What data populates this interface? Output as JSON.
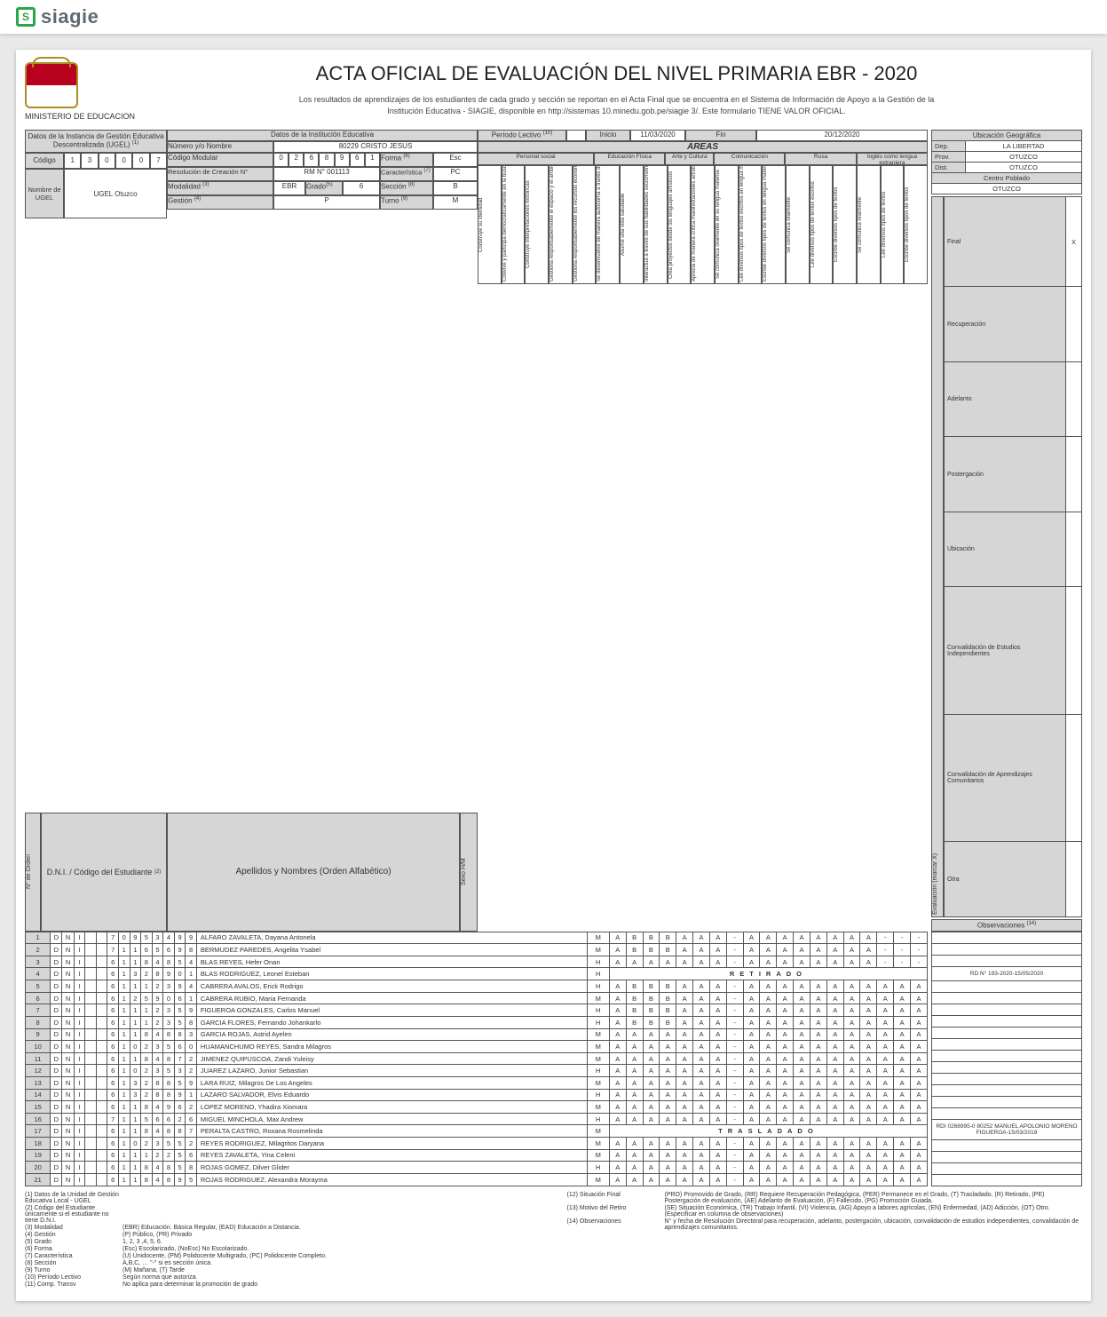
{
  "brand": {
    "name": "siagie"
  },
  "header": {
    "ministry": "MINISTERIO DE EDUCACION",
    "title": "ACTA OFICIAL DE EVALUACIÓN DEL NIVEL PRIMARIA EBR - 2020",
    "subtitle": "Los resultados de aprendizajes de los estudiantes de cada grado y sección se reportan en el Acta Final que se encuentra en el Sistema de Información de Apoyo a la Gestión de la Institución Educativa - SIAGIE, disponible en  http://sistemas        10.minedu.gob.pe/siagie  3/. Este formulario TIENE VALOR OFICIAL."
  },
  "ugel_block": {
    "title": "Datos de la Instancia de Gestión Educativa Descentralizada (UGEL)",
    "sup": "(1)",
    "codigo_label": "Código",
    "codigo": [
      "1",
      "3",
      "0",
      "0",
      "0",
      "7"
    ],
    "nombre_label": "Nombre de UGEL",
    "nombre": "UGEL Otuzco"
  },
  "ie_block": {
    "title": "Datos de la Institución Educativa",
    "numero_label": "Número y/o Nombre",
    "numero_value": "80229 CRISTO JESUS",
    "cod_mod_label": "Código Modular",
    "cod_mod": [
      "0",
      "2",
      "6",
      "8",
      "9",
      "6",
      "1"
    ],
    "forma_label": "Forma",
    "forma_sup": "(6)",
    "forma_value": "Esc",
    "resol_label": "Resolución de Creación N°",
    "resol_value": "RM N° 001113",
    "caract_label": "Característica",
    "caract_sup": "(7)",
    "caract_value": "PC",
    "modalidad_label": "Modalidad",
    "modalidad_sup": "(3)",
    "modalidad_value": "EBR",
    "grado_label": "Grado",
    "grado_sup": "(5)",
    "grado_value": "6",
    "seccion_label": "Sección",
    "seccion_sup": "(8)",
    "seccion_value": "B",
    "gestion_label": "Gestión",
    "gestion_sup": "(4)",
    "gestion_value": "P",
    "turno_label": "Turno",
    "turno_sup": "(9)",
    "turno_value": "M"
  },
  "periodo": {
    "label": "Período Lectivo",
    "sup": "(10)",
    "inicio_label": "Inicio",
    "inicio": "11/03/2020",
    "fin_label": "Fin",
    "fin": "20/12/2020"
  },
  "areas_label": "ÁREAS",
  "area_groups": [
    "Personal social",
    "Educación Física",
    "Arte y Cultura",
    "Comunicación",
    "Rusa",
    "Inglés como lengua extranjera"
  ],
  "competencias": [
    "Construye su identidad",
    "Convive y participa democráticamente en la búsqueda del bien común",
    "Construye interpretaciones históricas",
    "Gestiona responsablemente el espacio y el ambiente",
    "Gestiona responsablemente los recursos económicos",
    "Se desenvuelve de manera autónoma a través de su motricidad",
    "Asume una vida saludable",
    "Interactúa a través de sus habilidades sociomotrices",
    "Crea proyectos desde los lenguajes artísticos",
    "Aprecia de manera crítica manifestaciones artístico-culturales",
    "Se comunica oralmente en su lengua materna",
    "Lee diversos tipos de textos escritos en lengua materna",
    "Escribe diversos tipos de textos en lengua materna",
    "Se comunica oralmente",
    "Lee diversos tipos de textos escritos",
    "Escribe diversos tipos de textos",
    "Se comunica oralmente",
    "Lee diversos tipos de textos",
    "Escribe diversos tipos de textos"
  ],
  "geo": {
    "title": "Ubicación Geográfica",
    "dep_label": "Dep.",
    "dep": "LA LIBERTAD",
    "prov_label": "Prov.",
    "prov": "OTUZCO",
    "dist_label": "Dist.",
    "dist": "OTUZCO",
    "centro_label": "Centro Poblado",
    "centro": "OTUZCO"
  },
  "eval_block": {
    "side_label": "Evaluación (marcar X)",
    "rows": [
      {
        "label": "Final",
        "val": "X"
      },
      {
        "label": "Recuperación",
        "val": ""
      },
      {
        "label": "Adelanto",
        "val": ""
      },
      {
        "label": "Postergación",
        "val": ""
      },
      {
        "label": "Ubicación",
        "val": ""
      },
      {
        "label": "Convalidación de Estudios Independientes",
        "val": ""
      },
      {
        "label": "Convalidación de Aprendizajes Comunitarios",
        "val": ""
      },
      {
        "label": "Otra",
        "val": ""
      }
    ],
    "obs_label": "Observaciones",
    "obs_sup": "(14)"
  },
  "columns": {
    "orden": "N° de Orden",
    "dni": "D.N.I. / Código del Estudiante",
    "dni_sup": "(2)",
    "nombres": "Apellidos y Nombres (Orden Alfabético)",
    "sexo": "Sexo H/M"
  },
  "students": [
    {
      "n": 1,
      "dni": [
        "D",
        "N",
        "I",
        "",
        "",
        "7",
        "0",
        "9",
        "5",
        "3",
        "4",
        "9",
        "9"
      ],
      "name": "ALFARO ZAVALETA, Dayana Antonela",
      "sex": "M",
      "g": [
        "A",
        "B",
        "B",
        "B",
        "A",
        "A",
        "A",
        "-",
        "A",
        "A",
        "A",
        "A",
        "A",
        "A",
        "A",
        "A",
        "-",
        "-",
        "-"
      ]
    },
    {
      "n": 2,
      "dni": [
        "D",
        "N",
        "I",
        "",
        "",
        "7",
        "1",
        "1",
        "6",
        "5",
        "6",
        "9",
        "8"
      ],
      "name": "BERMUDEZ PAREDES, Angelita Ysabel",
      "sex": "M",
      "g": [
        "A",
        "B",
        "B",
        "B",
        "A",
        "A",
        "A",
        "-",
        "A",
        "A",
        "A",
        "A",
        "A",
        "A",
        "A",
        "A",
        "-",
        "-",
        "-"
      ]
    },
    {
      "n": 3,
      "dni": [
        "D",
        "N",
        "I",
        "",
        "",
        "6",
        "1",
        "1",
        "8",
        "4",
        "8",
        "5",
        "4"
      ],
      "name": "BLAS REYES, Hefer Onan",
      "sex": "H",
      "g": [
        "A",
        "A",
        "A",
        "A",
        "A",
        "A",
        "A",
        "-",
        "A",
        "A",
        "A",
        "A",
        "A",
        "A",
        "A",
        "A",
        "-",
        "-",
        "-"
      ]
    },
    {
      "n": 4,
      "dni": [
        "D",
        "N",
        "I",
        "",
        "",
        "6",
        "1",
        "3",
        "2",
        "8",
        "9",
        "0",
        "1"
      ],
      "name": "BLAS RODRIGUEZ, Leonel Esteban",
      "sex": "H",
      "status": "RETIRADO",
      "obs": "RD N° 193-2020-15/05/2020"
    },
    {
      "n": 5,
      "dni": [
        "D",
        "N",
        "I",
        "",
        "",
        "6",
        "1",
        "1",
        "1",
        "2",
        "3",
        "9",
        "4"
      ],
      "name": "CABRERA AVALOS, Erick Rodrigo",
      "sex": "H",
      "g": [
        "A",
        "B",
        "B",
        "B",
        "A",
        "A",
        "A",
        "-",
        "A",
        "A",
        "A",
        "A",
        "A",
        "A",
        "A",
        "A",
        "A",
        "A",
        "A"
      ]
    },
    {
      "n": 6,
      "dni": [
        "D",
        "N",
        "I",
        "",
        "",
        "6",
        "1",
        "2",
        "5",
        "9",
        "0",
        "6",
        "1"
      ],
      "name": "CABRERA RUBIO, Maria Fernanda",
      "sex": "M",
      "g": [
        "A",
        "B",
        "B",
        "B",
        "A",
        "A",
        "A",
        "-",
        "A",
        "A",
        "A",
        "A",
        "A",
        "A",
        "A",
        "A",
        "A",
        "A",
        "A"
      ]
    },
    {
      "n": 7,
      "dni": [
        "D",
        "N",
        "I",
        "",
        "",
        "6",
        "1",
        "1",
        "1",
        "2",
        "3",
        "5",
        "9"
      ],
      "name": "FIGUEROA GONZALES, Carlos Manuel",
      "sex": "H",
      "g": [
        "A",
        "B",
        "B",
        "B",
        "A",
        "A",
        "A",
        "-",
        "A",
        "A",
        "A",
        "A",
        "A",
        "A",
        "A",
        "A",
        "A",
        "A",
        "A"
      ]
    },
    {
      "n": 8,
      "dni": [
        "D",
        "N",
        "I",
        "",
        "",
        "6",
        "1",
        "1",
        "1",
        "2",
        "3",
        "5",
        "8"
      ],
      "name": "GARCIA FLORES, Fernando Johankarlo",
      "sex": "H",
      "g": [
        "A",
        "B",
        "B",
        "B",
        "A",
        "A",
        "A",
        "-",
        "A",
        "A",
        "A",
        "A",
        "A",
        "A",
        "A",
        "A",
        "A",
        "A",
        "A"
      ]
    },
    {
      "n": 9,
      "dni": [
        "D",
        "N",
        "I",
        "",
        "",
        "6",
        "1",
        "1",
        "8",
        "4",
        "8",
        "8",
        "3"
      ],
      "name": "GARCIA ROJAS, Astrid Ayelen",
      "sex": "M",
      "g": [
        "A",
        "A",
        "A",
        "A",
        "A",
        "A",
        "A",
        "-",
        "A",
        "A",
        "A",
        "A",
        "A",
        "A",
        "A",
        "A",
        "A",
        "A",
        "A"
      ]
    },
    {
      "n": 10,
      "dni": [
        "D",
        "N",
        "I",
        "",
        "",
        "6",
        "1",
        "0",
        "2",
        "3",
        "5",
        "6",
        "0"
      ],
      "name": "HUAMANCHUMO REYES, Sandra Milagros",
      "sex": "M",
      "g": [
        "A",
        "A",
        "A",
        "A",
        "A",
        "A",
        "A",
        "-",
        "A",
        "A",
        "A",
        "A",
        "A",
        "A",
        "A",
        "A",
        "A",
        "A",
        "A"
      ]
    },
    {
      "n": 11,
      "dni": [
        "D",
        "N",
        "I",
        "",
        "",
        "6",
        "1",
        "1",
        "8",
        "4",
        "8",
        "7",
        "2"
      ],
      "name": "JIMENEZ QUIPUSCOA, Zandi Yuleisy",
      "sex": "M",
      "g": [
        "A",
        "A",
        "A",
        "A",
        "A",
        "A",
        "A",
        "-",
        "A",
        "A",
        "A",
        "A",
        "A",
        "A",
        "A",
        "A",
        "A",
        "A",
        "A"
      ]
    },
    {
      "n": 12,
      "dni": [
        "D",
        "N",
        "I",
        "",
        "",
        "6",
        "1",
        "0",
        "2",
        "3",
        "5",
        "3",
        "2"
      ],
      "name": "JUAREZ LAZARO, Junior Sebastian",
      "sex": "H",
      "g": [
        "A",
        "A",
        "A",
        "A",
        "A",
        "A",
        "A",
        "-",
        "A",
        "A",
        "A",
        "A",
        "A",
        "A",
        "A",
        "A",
        "A",
        "A",
        "A"
      ]
    },
    {
      "n": 13,
      "dni": [
        "D",
        "N",
        "I",
        "",
        "",
        "6",
        "1",
        "3",
        "2",
        "8",
        "8",
        "5",
        "9"
      ],
      "name": "LARA RUIZ, Milagros De Los Angeles",
      "sex": "M",
      "g": [
        "A",
        "A",
        "A",
        "A",
        "A",
        "A",
        "A",
        "-",
        "A",
        "A",
        "A",
        "A",
        "A",
        "A",
        "A",
        "A",
        "A",
        "A",
        "A"
      ]
    },
    {
      "n": 14,
      "dni": [
        "D",
        "N",
        "I",
        "",
        "",
        "6",
        "1",
        "3",
        "2",
        "8",
        "8",
        "9",
        "1"
      ],
      "name": "LAZARO SALVADOR, Elvis Eduardo",
      "sex": "H",
      "g": [
        "A",
        "A",
        "A",
        "A",
        "A",
        "A",
        "A",
        "-",
        "A",
        "A",
        "A",
        "A",
        "A",
        "A",
        "A",
        "A",
        "A",
        "A",
        "A"
      ]
    },
    {
      "n": 15,
      "dni": [
        "D",
        "N",
        "I",
        "",
        "",
        "6",
        "1",
        "1",
        "8",
        "4",
        "9",
        "6",
        "2"
      ],
      "name": "LOPEZ MORENO, Yhadira Xiomara",
      "sex": "M",
      "g": [
        "A",
        "A",
        "A",
        "A",
        "A",
        "A",
        "A",
        "-",
        "A",
        "A",
        "A",
        "A",
        "A",
        "A",
        "A",
        "A",
        "A",
        "A",
        "A"
      ]
    },
    {
      "n": 16,
      "dni": [
        "D",
        "N",
        "I",
        "",
        "",
        "7",
        "1",
        "1",
        "5",
        "6",
        "6",
        "2",
        "6"
      ],
      "name": "MIGUEL MINCHOLA, Max Andrew",
      "sex": "H",
      "g": [
        "A",
        "A",
        "A",
        "A",
        "A",
        "A",
        "A",
        "-",
        "A",
        "A",
        "A",
        "A",
        "A",
        "A",
        "A",
        "A",
        "A",
        "A",
        "A"
      ]
    },
    {
      "n": 17,
      "dni": [
        "D",
        "N",
        "I",
        "",
        "",
        "6",
        "1",
        "1",
        "8",
        "4",
        "8",
        "8",
        "7"
      ],
      "name": "PERALTA CASTRO, Roxana Rosmelinda",
      "sex": "M",
      "status": "TRASLADADO",
      "obs": "RDI 0268995-0 80252 MANUEL APOLONIO MORENO FIGUEROA-15/03/2019"
    },
    {
      "n": 18,
      "dni": [
        "D",
        "N",
        "I",
        "",
        "",
        "6",
        "1",
        "0",
        "2",
        "3",
        "5",
        "5",
        "2"
      ],
      "name": "REYES RODRIGUEZ, Milagritos Daryana",
      "sex": "M",
      "g": [
        "A",
        "A",
        "A",
        "A",
        "A",
        "A",
        "A",
        "-",
        "A",
        "A",
        "A",
        "A",
        "A",
        "A",
        "A",
        "A",
        "A",
        "A",
        "A"
      ]
    },
    {
      "n": 19,
      "dni": [
        "D",
        "N",
        "I",
        "",
        "",
        "6",
        "1",
        "1",
        "1",
        "2",
        "2",
        "5",
        "6"
      ],
      "name": "REYES ZAVALETA, Yina Celeni",
      "sex": "M",
      "g": [
        "A",
        "A",
        "A",
        "A",
        "A",
        "A",
        "A",
        "-",
        "A",
        "A",
        "A",
        "A",
        "A",
        "A",
        "A",
        "A",
        "A",
        "A",
        "A"
      ]
    },
    {
      "n": 20,
      "dni": [
        "D",
        "N",
        "I",
        "",
        "",
        "6",
        "1",
        "1",
        "8",
        "4",
        "8",
        "5",
        "8"
      ],
      "name": "ROJAS GOMEZ, Dilver Glider",
      "sex": "H",
      "g": [
        "A",
        "A",
        "A",
        "A",
        "A",
        "A",
        "A",
        "-",
        "A",
        "A",
        "A",
        "A",
        "A",
        "A",
        "A",
        "A",
        "A",
        "A",
        "A"
      ]
    },
    {
      "n": 21,
      "dni": [
        "D",
        "N",
        "I",
        "",
        "",
        "6",
        "1",
        "1",
        "8",
        "4",
        "8",
        "9",
        "5"
      ],
      "name": "ROJAS RODRIGUEZ, Alexandra Morayma",
      "sex": "M",
      "g": [
        "A",
        "A",
        "A",
        "A",
        "A",
        "A",
        "A",
        "-",
        "A",
        "A",
        "A",
        "A",
        "A",
        "A",
        "A",
        "A",
        "A",
        "A",
        "A"
      ]
    }
  ],
  "footnotes": {
    "left": [
      {
        "k": "(1) Datos de la Unidad de Gestión Educativa Local - UGEL",
        "v": ""
      },
      {
        "k": "(2) Código del Estudiante únicamente si el estudiante no tiene D.N.I.",
        "v": ""
      },
      {
        "k": "(3) Modalidad",
        "v": "(EBR) Educación. Básica Regular, (EAD) Educación a Distancia."
      },
      {
        "k": "(4) Gestión",
        "v": "(P) Público, (PR) Privado"
      },
      {
        "k": "(5) Grado",
        "v": "1, 2, 3 ,4, 5, 6."
      },
      {
        "k": "(6) Forma",
        "v": "(Esc) Escolarizado, (NoEsc) No Escolarizado."
      },
      {
        "k": "(7) Característica",
        "v": "(U) Unidocente, (PM) Polidocente Multigrado, (PC) Polidocente Completo."
      },
      {
        "k": "(8) Sección",
        "v": "A,B,C, …  \"-\" si es sección única."
      },
      {
        "k": "(9) Turno",
        "v": "(M) Mañana, (T) Tarde"
      },
      {
        "k": "(10) Período Lectivo",
        "v": "Según norma que autoriza."
      },
      {
        "k": "(11) Comp. Transv",
        "v": "No aplica para determinar la promoción de grado"
      }
    ],
    "right": [
      {
        "k": "(12) Situación Final",
        "v": "(PRO) Promovido de Grado, (RR) Requiere Recuperación Pedagógica, (PER) Permanece en el Grado, (T) Trasladado, (R) Retirado, (PE) Postergación de evaluación, (AE) Adelanto de Evaluación, (F) Fallecido, (PG) Promoción Guiada."
      },
      {
        "k": "(13) Motivo del Retiro",
        "v": "(SE) Situación Económica, (TR) Trabajo Infantil, (VI) Violencia, (AG) Apoyo a labores agrícolas, (EN) Enfermedad, (AD) Adicción, (OT) Otro.(Especificar en columna de observaciones)"
      },
      {
        "k": "(14) Observaciones",
        "v": "N° y fecha de Resolución Directoral para recuperación, adelanto, postergación, ubicación, convalidación de estudios independientes, convalidación de aprendizajes comunitarios."
      }
    ]
  },
  "colors": {
    "brand_green": "#2da54a",
    "shade": "#d6d6d6",
    "border": "#555555",
    "page_bg": "#e9e9e9"
  }
}
